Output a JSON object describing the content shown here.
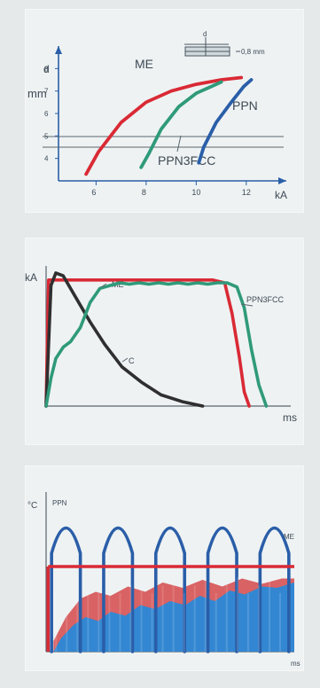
{
  "chart_data": [
    {
      "type": "line",
      "title": "",
      "xlabel": "kA",
      "ylabel": "mm",
      "y_top_tick_label": "d",
      "inset_label": "0,8 mm",
      "inset_symbol": "d",
      "x_ticks": [
        "6",
        "8",
        "10",
        "12"
      ],
      "y_ticks": [
        "4",
        "5",
        "6",
        "7",
        "8"
      ],
      "xlim": [
        4.5,
        13.6
      ],
      "ylim": [
        3.0,
        9.0
      ],
      "threshold_line": 4.5,
      "series": [
        {
          "name": "ME",
          "color": "#d92a35",
          "points": [
            [
              5.6,
              3.3
            ],
            [
              6.1,
              4.3
            ],
            [
              7.0,
              5.6
            ],
            [
              8.0,
              6.5
            ],
            [
              9.0,
              7.0
            ],
            [
              10.0,
              7.3
            ],
            [
              11.0,
              7.5
            ],
            [
              11.8,
              7.6
            ]
          ]
        },
        {
          "name": "PPN3FCC",
          "color": "#2f9a7a",
          "points": [
            [
              7.8,
              3.6
            ],
            [
              8.1,
              4.2
            ],
            [
              8.6,
              5.3
            ],
            [
              9.3,
              6.3
            ],
            [
              10.0,
              6.9
            ],
            [
              10.6,
              7.2
            ],
            [
              11.0,
              7.4
            ]
          ]
        },
        {
          "name": "PPN",
          "color": "#2a5ea8",
          "points": [
            [
              10.1,
              3.8
            ],
            [
              10.3,
              4.5
            ],
            [
              10.8,
              5.6
            ],
            [
              11.4,
              6.5
            ],
            [
              11.9,
              7.2
            ],
            [
              12.2,
              7.5
            ]
          ]
        }
      ]
    },
    {
      "type": "line",
      "title": "",
      "xlabel": "ms",
      "ylabel": "kA",
      "xlim": [
        0,
        100
      ],
      "ylim": [
        0,
        100
      ],
      "series": [
        {
          "name": "ME",
          "color": "#d92a35",
          "points": [
            [
              0,
              0
            ],
            [
              1,
              90
            ],
            [
              3,
              90
            ],
            [
              18,
              90
            ],
            [
              42,
              90
            ],
            [
              68,
              90
            ],
            [
              73,
              88
            ],
            [
              76,
              66
            ],
            [
              79,
              35
            ],
            [
              81,
              10
            ],
            [
              83,
              0
            ]
          ]
        },
        {
          "name": "C",
          "color": "#2f2f2f",
          "points": [
            [
              0,
              0
            ],
            [
              2,
              86
            ],
            [
              4,
              95
            ],
            [
              7,
              93
            ],
            [
              12,
              78
            ],
            [
              18,
              60
            ],
            [
              24,
              44
            ],
            [
              31,
              28
            ],
            [
              39,
              17
            ],
            [
              47,
              8
            ],
            [
              56,
              3
            ],
            [
              64,
              0
            ]
          ]
        },
        {
          "name": "PPN3FCC",
          "color": "#2f9a7a",
          "points": [
            [
              0,
              0
            ],
            [
              2,
              20
            ],
            [
              4,
              34
            ],
            [
              7,
              42
            ],
            [
              10,
              46
            ],
            [
              14,
              56
            ],
            [
              18,
              74
            ],
            [
              22,
              84
            ],
            [
              26,
              86
            ],
            [
              30,
              88
            ],
            [
              34,
              87
            ],
            [
              38,
              88
            ],
            [
              42,
              87
            ],
            [
              46,
              88
            ],
            [
              50,
              87
            ],
            [
              54,
              88
            ],
            [
              58,
              87
            ],
            [
              62,
              88
            ],
            [
              66,
              87
            ],
            [
              70,
              88
            ],
            [
              74,
              88
            ],
            [
              78,
              85
            ],
            [
              81,
              70
            ],
            [
              84,
              40
            ],
            [
              87,
              15
            ],
            [
              90,
              0
            ]
          ]
        }
      ]
    },
    {
      "type": "area",
      "title": "",
      "xlabel": "ms",
      "ylabel": "°C",
      "xlim": [
        0,
        100
      ],
      "ylim": [
        0,
        120
      ],
      "series": [
        {
          "name": "PPN",
          "color": "#2a5ea8",
          "shape": "5 parabolic pulses",
          "peak": 112
        },
        {
          "name": "ME",
          "color": "#d92a35",
          "shape": "flat line",
          "level": 64
        }
      ],
      "fill_layers": [
        {
          "color": "#d75a5c",
          "description": "upper filled band"
        },
        {
          "color": "#2c88d6",
          "description": "lower filled band"
        }
      ]
    }
  ]
}
